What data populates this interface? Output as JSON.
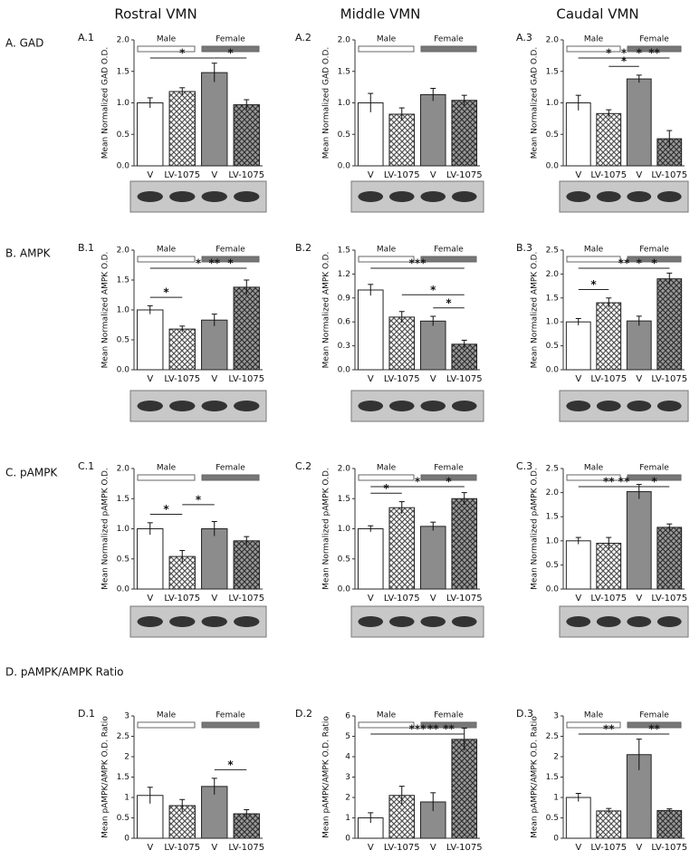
{
  "column_titles": [
    "Rostral VMN",
    "Middle VMN",
    "Caudal VMN"
  ],
  "row_labels": [
    "A.  GAD",
    "B.  AMPK",
    "C.  pAMPK",
    "D.  pAMPK/AMPK Ratio"
  ],
  "chart_data": [
    {
      "type": "bar",
      "panel": "A.1",
      "ylabel": "Mean Normalized GAD O.D.",
      "groups": [
        "Male",
        "Female"
      ],
      "categories": [
        "V",
        "LV-1075",
        "V",
        "LV-1075"
      ],
      "values": [
        1.0,
        1.18,
        1.48,
        0.97
      ],
      "errors": [
        0.08,
        0.06,
        0.15,
        0.08
      ],
      "colors": [
        "#ffffff",
        "#ffffff",
        "#8c8c8c",
        "#8c8c8c"
      ],
      "ylim": [
        0,
        2
      ],
      "yticks": [
        {
          "value": 0,
          "label": "0.0"
        },
        0.5,
        {
          "value": 1,
          "label": "1.0"
        },
        1.5,
        {
          "value": 2,
          "label": "2.0"
        }
      ],
      "annotations": [
        {
          "text": "*",
          "from": 2,
          "to": 3
        },
        {
          "text": "*",
          "from": 0,
          "to": 2
        }
      ]
    },
    {
      "type": "bar",
      "panel": "A.2",
      "ylabel": "Mean Normalized GAD O.D.",
      "groups": [
        "Male",
        "Female"
      ],
      "categories": [
        "V",
        "LV-1075",
        "V",
        "LV-1075"
      ],
      "values": [
        1.0,
        0.82,
        1.13,
        1.04
      ],
      "errors": [
        0.15,
        0.1,
        0.1,
        0.08
      ],
      "colors": [
        "#ffffff",
        "#ffffff",
        "#8c8c8c",
        "#8c8c8c"
      ],
      "ylim": [
        0,
        2
      ],
      "yticks": [
        {
          "value": 0,
          "label": "0.0"
        },
        0.5,
        {
          "value": 1,
          "label": "1.0"
        },
        1.5,
        {
          "value": 2,
          "label": "2.0"
        }
      ],
      "annotations": []
    },
    {
      "type": "bar",
      "panel": "A.3",
      "ylabel": "Mean Normalized GAD O.D.",
      "groups": [
        "Male",
        "Female"
      ],
      "categories": [
        "V",
        "LV-1075",
        "V",
        "LV-1075"
      ],
      "values": [
        1.0,
        0.83,
        1.38,
        0.43
      ],
      "errors": [
        0.12,
        0.06,
        0.06,
        0.13
      ],
      "colors": [
        "#ffffff",
        "#ffffff",
        "#8c8c8c",
        "#8c8c8c"
      ],
      "ylim": [
        0,
        2
      ],
      "yticks": [
        {
          "value": 0,
          "label": "0.0"
        },
        0.5,
        {
          "value": 1,
          "label": "1.0"
        },
        1.5,
        {
          "value": 2,
          "label": "2.0"
        }
      ],
      "annotations": [
        {
          "text": "*",
          "from": 1,
          "to": 2
        },
        {
          "text": "**",
          "from": 2,
          "to": 3
        },
        {
          "text": "*",
          "from": 0,
          "to": 2
        },
        {
          "text": "*",
          "from": 1,
          "to": 3
        },
        {
          "text": "*",
          "from": 0,
          "to": 3
        }
      ]
    },
    {
      "type": "bar",
      "panel": "B.1",
      "ylabel": "Mean Normalized AMPK O.D.",
      "groups": [
        "Male",
        "Female"
      ],
      "categories": [
        "V",
        "LV-1075",
        "V",
        "LV-1075"
      ],
      "values": [
        1.0,
        0.68,
        0.83,
        1.38
      ],
      "errors": [
        0.07,
        0.05,
        0.1,
        0.12
      ],
      "colors": [
        "#ffffff",
        "#ffffff",
        "#8c8c8c",
        "#8c8c8c"
      ],
      "ylim": [
        0,
        2
      ],
      "yticks": [
        {
          "value": 0,
          "label": "0.0"
        },
        0.5,
        {
          "value": 1,
          "label": "1.0"
        },
        1.5,
        {
          "value": 2,
          "label": "2.0"
        }
      ],
      "annotations": [
        {
          "text": "*",
          "from": 0,
          "to": 1
        },
        {
          "text": "*",
          "from": 2,
          "to": 3
        },
        {
          "text": "**",
          "from": 1,
          "to": 3
        },
        {
          "text": "*",
          "from": 0,
          "to": 3
        }
      ]
    },
    {
      "type": "bar",
      "panel": "B.2",
      "ylabel": "Mean Normalized AMPK O.D.",
      "groups": [
        "Male",
        "Female"
      ],
      "categories": [
        "V",
        "LV-1075",
        "V",
        "LV-1075"
      ],
      "values": [
        1.0,
        0.66,
        0.61,
        0.32
      ],
      "errors": [
        0.07,
        0.07,
        0.06,
        0.05
      ],
      "colors": [
        "#ffffff",
        "#ffffff",
        "#8c8c8c",
        "#8c8c8c"
      ],
      "ylim": [
        0,
        1.5
      ],
      "yticks": [
        {
          "value": 0,
          "label": "0.0"
        },
        0.3,
        0.6,
        0.9,
        1.2,
        1.5
      ],
      "annotations": [
        {
          "text": "*",
          "from": 2,
          "to": 3
        },
        {
          "text": "*",
          "from": 1,
          "to": 3
        },
        {
          "text": "***",
          "from": 0,
          "to": 3
        }
      ]
    },
    {
      "type": "bar",
      "panel": "B.3",
      "ylabel": "Mean Normalized AMPK O.D.",
      "groups": [
        "Male",
        "Female"
      ],
      "categories": [
        "V",
        "LV-1075",
        "V",
        "LV-1075"
      ],
      "values": [
        1.0,
        1.4,
        1.02,
        1.9
      ],
      "errors": [
        0.07,
        0.1,
        0.1,
        0.12
      ],
      "colors": [
        "#ffffff",
        "#ffffff",
        "#8c8c8c",
        "#8c8c8c"
      ],
      "ylim": [
        0,
        2.5
      ],
      "yticks": [
        {
          "value": 0,
          "label": "0.0"
        },
        0.5,
        {
          "value": 1,
          "label": "1.0"
        },
        1.5,
        {
          "value": 2,
          "label": "2.0"
        },
        2.5
      ],
      "annotations": [
        {
          "text": "*",
          "from": 0,
          "to": 1
        },
        {
          "text": "*",
          "from": 2,
          "to": 3
        },
        {
          "text": "*",
          "from": 1,
          "to": 3
        },
        {
          "text": "**",
          "from": 0,
          "to": 3
        }
      ]
    },
    {
      "type": "bar",
      "panel": "C.1",
      "ylabel": "Mean Normalized pAMPK O.D.",
      "groups": [
        "Male",
        "Female"
      ],
      "categories": [
        "V",
        "LV-1075",
        "V",
        "LV-1075"
      ],
      "values": [
        1.0,
        0.54,
        1.0,
        0.8
      ],
      "errors": [
        0.1,
        0.1,
        0.12,
        0.07
      ],
      "colors": [
        "#ffffff",
        "#ffffff",
        "#8c8c8c",
        "#8c8c8c"
      ],
      "ylim": [
        0,
        2
      ],
      "yticks": [
        {
          "value": 0,
          "label": "0.0"
        },
        0.5,
        {
          "value": 1,
          "label": "1.0"
        },
        1.5,
        {
          "value": 2,
          "label": "2.0"
        }
      ],
      "annotations": [
        {
          "text": "*",
          "from": 0,
          "to": 1
        },
        {
          "text": "*",
          "from": 1,
          "to": 2
        }
      ]
    },
    {
      "type": "bar",
      "panel": "C.2",
      "ylabel": "Mean Normalized pAMPK O.D.",
      "groups": [
        "Male",
        "Female"
      ],
      "categories": [
        "V",
        "LV-1075",
        "V",
        "LV-1075"
      ],
      "values": [
        1.0,
        1.35,
        1.04,
        1.5
      ],
      "errors": [
        0.05,
        0.1,
        0.07,
        0.1
      ],
      "colors": [
        "#ffffff",
        "#ffffff",
        "#8c8c8c",
        "#8c8c8c"
      ],
      "ylim": [
        0,
        2
      ],
      "yticks": [
        {
          "value": 0,
          "label": "0.0"
        },
        0.5,
        {
          "value": 1,
          "label": "1.0"
        },
        1.5,
        {
          "value": 2,
          "label": "2.0"
        }
      ],
      "annotations": [
        {
          "text": "*",
          "from": 0,
          "to": 1
        },
        {
          "text": "*",
          "from": 2,
          "to": 3
        },
        {
          "text": "*",
          "from": 0,
          "to": 3
        }
      ]
    },
    {
      "type": "bar",
      "panel": "C.3",
      "ylabel": "Mean Normalized pAMPK O.D.",
      "groups": [
        "Male",
        "Female"
      ],
      "categories": [
        "V",
        "LV-1075",
        "V",
        "LV-1075"
      ],
      "values": [
        1.0,
        0.95,
        2.02,
        1.28
      ],
      "errors": [
        0.07,
        0.12,
        0.15,
        0.07
      ],
      "colors": [
        "#ffffff",
        "#ffffff",
        "#8c8c8c",
        "#8c8c8c"
      ],
      "ylim": [
        0,
        2.5
      ],
      "yticks": [
        {
          "value": 0,
          "label": "0.0"
        },
        0.5,
        {
          "value": 1,
          "label": "1.0"
        },
        1.5,
        {
          "value": 2,
          "label": "2.0"
        },
        2.5
      ],
      "annotations": [
        {
          "text": "*",
          "from": 2,
          "to": 3
        },
        {
          "text": "**",
          "from": 1,
          "to": 2
        },
        {
          "text": "**",
          "from": 0,
          "to": 2
        }
      ]
    },
    {
      "type": "bar",
      "panel": "D.1",
      "ylabel": "Mean pAMPK/AMPK O.D. Ratio",
      "groups": [
        "Male",
        "Female"
      ],
      "categories": [
        "V",
        "LV-1075",
        "V",
        "LV-1075"
      ],
      "values": [
        1.05,
        0.8,
        1.27,
        0.6
      ],
      "errors": [
        0.2,
        0.15,
        0.2,
        0.1
      ],
      "colors": [
        "#ffffff",
        "#ffffff",
        "#8c8c8c",
        "#8c8c8c"
      ],
      "ylim": [
        0,
        3
      ],
      "yticks": [
        0,
        0.5,
        1,
        1.5,
        2,
        2.5,
        3
      ],
      "annotations": [
        {
          "text": "*",
          "from": 2,
          "to": 3
        }
      ]
    },
    {
      "type": "bar",
      "panel": "D.2",
      "ylabel": "Mean pAMPK/AMPK O.D. Ratio",
      "groups": [
        "Male",
        "Female"
      ],
      "categories": [
        "V",
        "LV-1075",
        "V",
        "LV-1075"
      ],
      "values": [
        1.0,
        2.1,
        1.78,
        4.85
      ],
      "errors": [
        0.25,
        0.45,
        0.45,
        0.55
      ],
      "colors": [
        "#ffffff",
        "#ffffff",
        "#8c8c8c",
        "#8c8c8c"
      ],
      "ylim": [
        0,
        6
      ],
      "yticks": [
        0,
        1,
        2,
        3,
        4,
        5,
        6
      ],
      "annotations": [
        {
          "text": "**",
          "from": 2,
          "to": 3
        },
        {
          "text": "**",
          "from": 1,
          "to": 3
        },
        {
          "text": "***",
          "from": 0,
          "to": 3
        }
      ]
    },
    {
      "type": "bar",
      "panel": "D.3",
      "ylabel": "Mean pAMPK/AMPK O.D. Ratio",
      "groups": [
        "Male",
        "Female"
      ],
      "categories": [
        "V",
        "LV-1075",
        "V",
        "LV-1075"
      ],
      "values": [
        1.0,
        0.67,
        2.05,
        0.68
      ],
      "errors": [
        0.1,
        0.06,
        0.38,
        0.04
      ],
      "colors": [
        "#ffffff",
        "#ffffff",
        "#8c8c8c",
        "#8c8c8c"
      ],
      "ylim": [
        0,
        3
      ],
      "yticks": [
        0,
        0.5,
        1,
        1.5,
        2,
        2.5,
        3
      ],
      "annotations": [
        {
          "text": "**",
          "from": 2,
          "to": 3
        },
        {
          "text": "**",
          "from": 0,
          "to": 2
        }
      ]
    }
  ]
}
